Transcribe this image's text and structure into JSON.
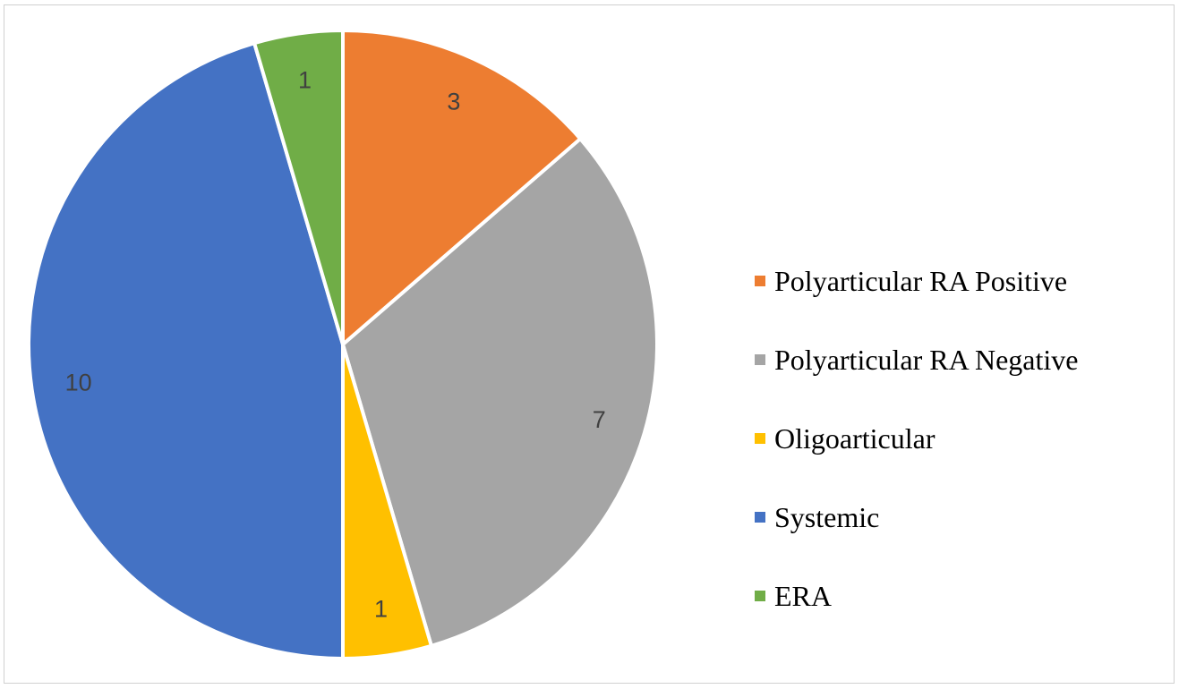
{
  "chart_data": {
    "type": "pie",
    "title": "",
    "slices": [
      {
        "label": "Polyarticular RA Positive",
        "value": 3,
        "color": "#ED7D31"
      },
      {
        "label": "Polyarticular RA Negative",
        "value": 7,
        "color": "#A5A5A5"
      },
      {
        "label": "Oligoarticular",
        "value": 1,
        "color": "#FFC000"
      },
      {
        "label": "Systemic",
        "value": 10,
        "color": "#4472C4"
      },
      {
        "label": "ERA",
        "value": 1,
        "color": "#70AD47"
      }
    ],
    "data_labels": true,
    "legend_position": "right"
  }
}
